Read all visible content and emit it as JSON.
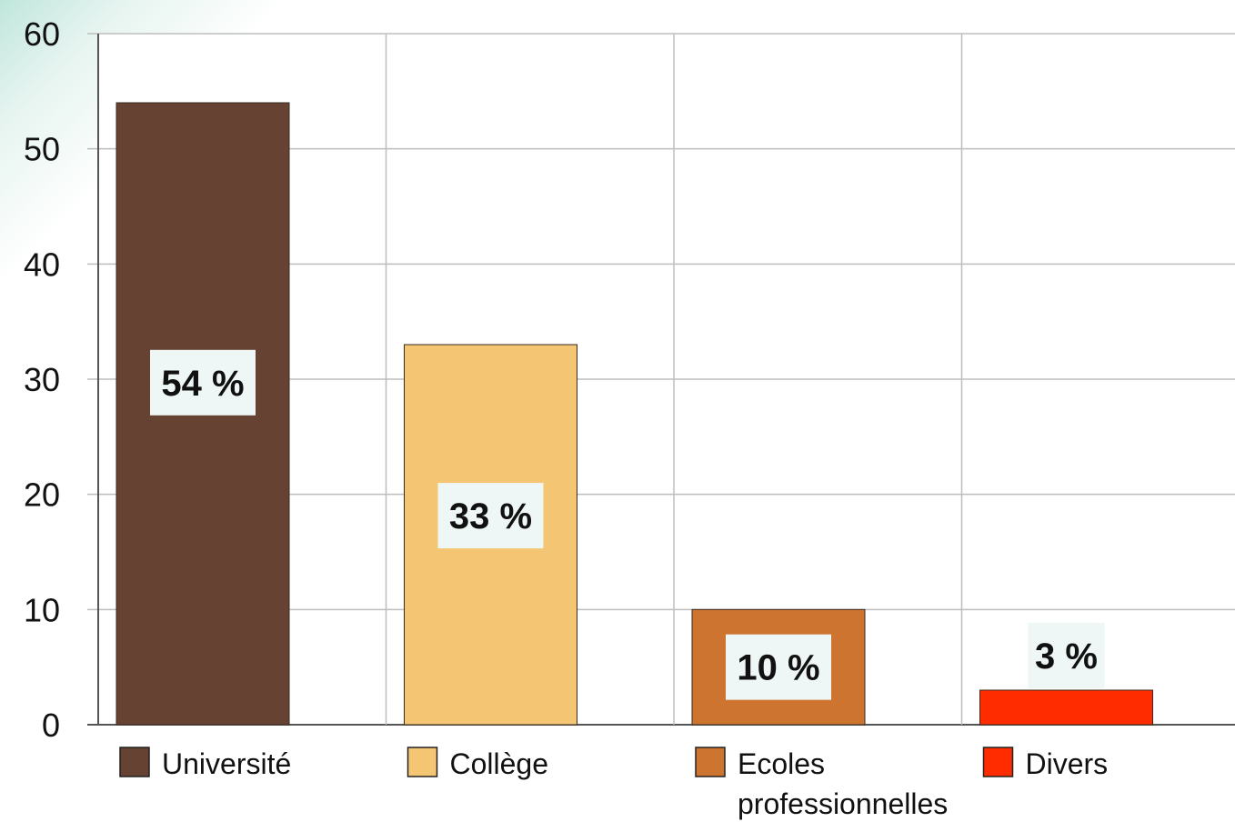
{
  "chart_data": {
    "type": "bar",
    "categories": [
      "Université",
      "Collège",
      "Ecoles professionnelles",
      "Divers"
    ],
    "values": [
      54,
      33,
      10,
      3
    ],
    "data_labels": [
      "54 %",
      "33 %",
      "10 %",
      "3 %"
    ],
    "colors": [
      "#654232",
      "#f4c572",
      "#cd7431",
      "#ff2c00"
    ],
    "legend": [
      {
        "label": "Université",
        "color": "#654232"
      },
      {
        "label": "Collège",
        "color": "#f4c572"
      },
      {
        "label": "Ecoles",
        "label_line2": "professionnelles",
        "color": "#cd7431"
      },
      {
        "label": "Divers",
        "color": "#ff2c00"
      }
    ],
    "ylim": [
      0,
      60
    ],
    "yticks": [
      "0",
      "10",
      "20",
      "30",
      "40",
      "50",
      "60"
    ],
    "grid": true,
    "legend_position": "bottom",
    "title": "",
    "xlabel": "",
    "ylabel": ""
  }
}
